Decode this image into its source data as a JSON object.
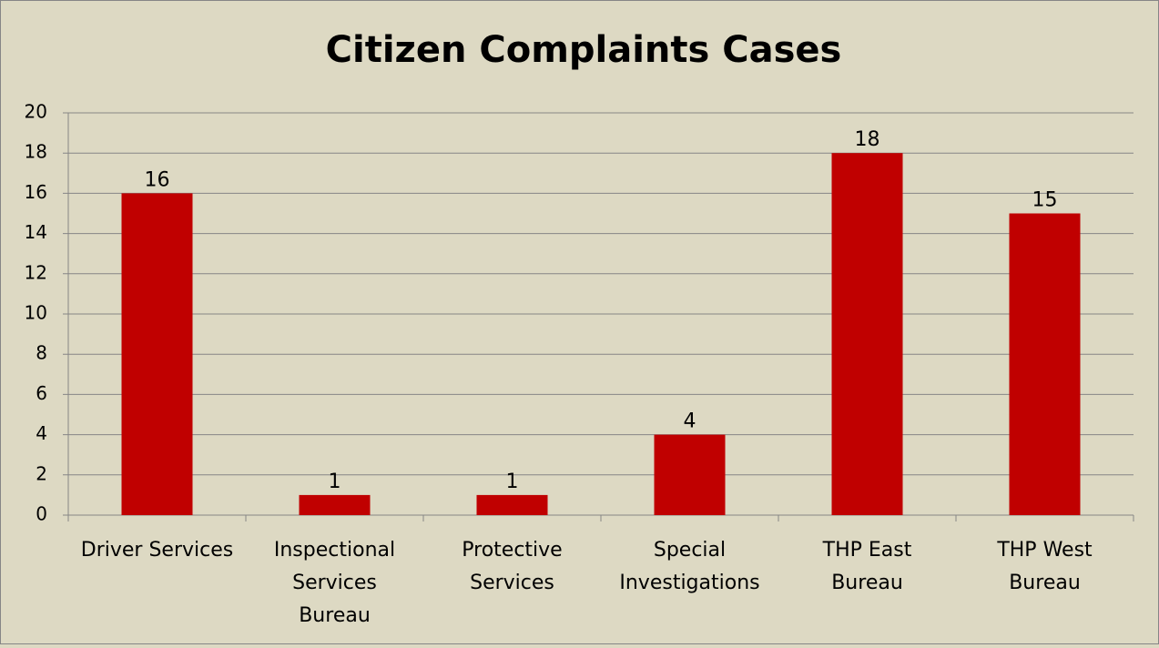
{
  "chart_data": {
    "type": "bar",
    "title": "Citizen Complaints Cases",
    "categories": [
      "Driver Services",
      "Inspectional Services Bureau",
      "Protective Services",
      "Special Investigations",
      "THP East Bureau",
      "THP West Bureau"
    ],
    "values": [
      16,
      1,
      1,
      4,
      18,
      15
    ],
    "color": "#c00000",
    "ylim": [
      0,
      20
    ],
    "yticks": [
      0,
      2,
      4,
      6,
      8,
      10,
      12,
      14,
      16,
      18,
      20
    ],
    "grid": true
  }
}
